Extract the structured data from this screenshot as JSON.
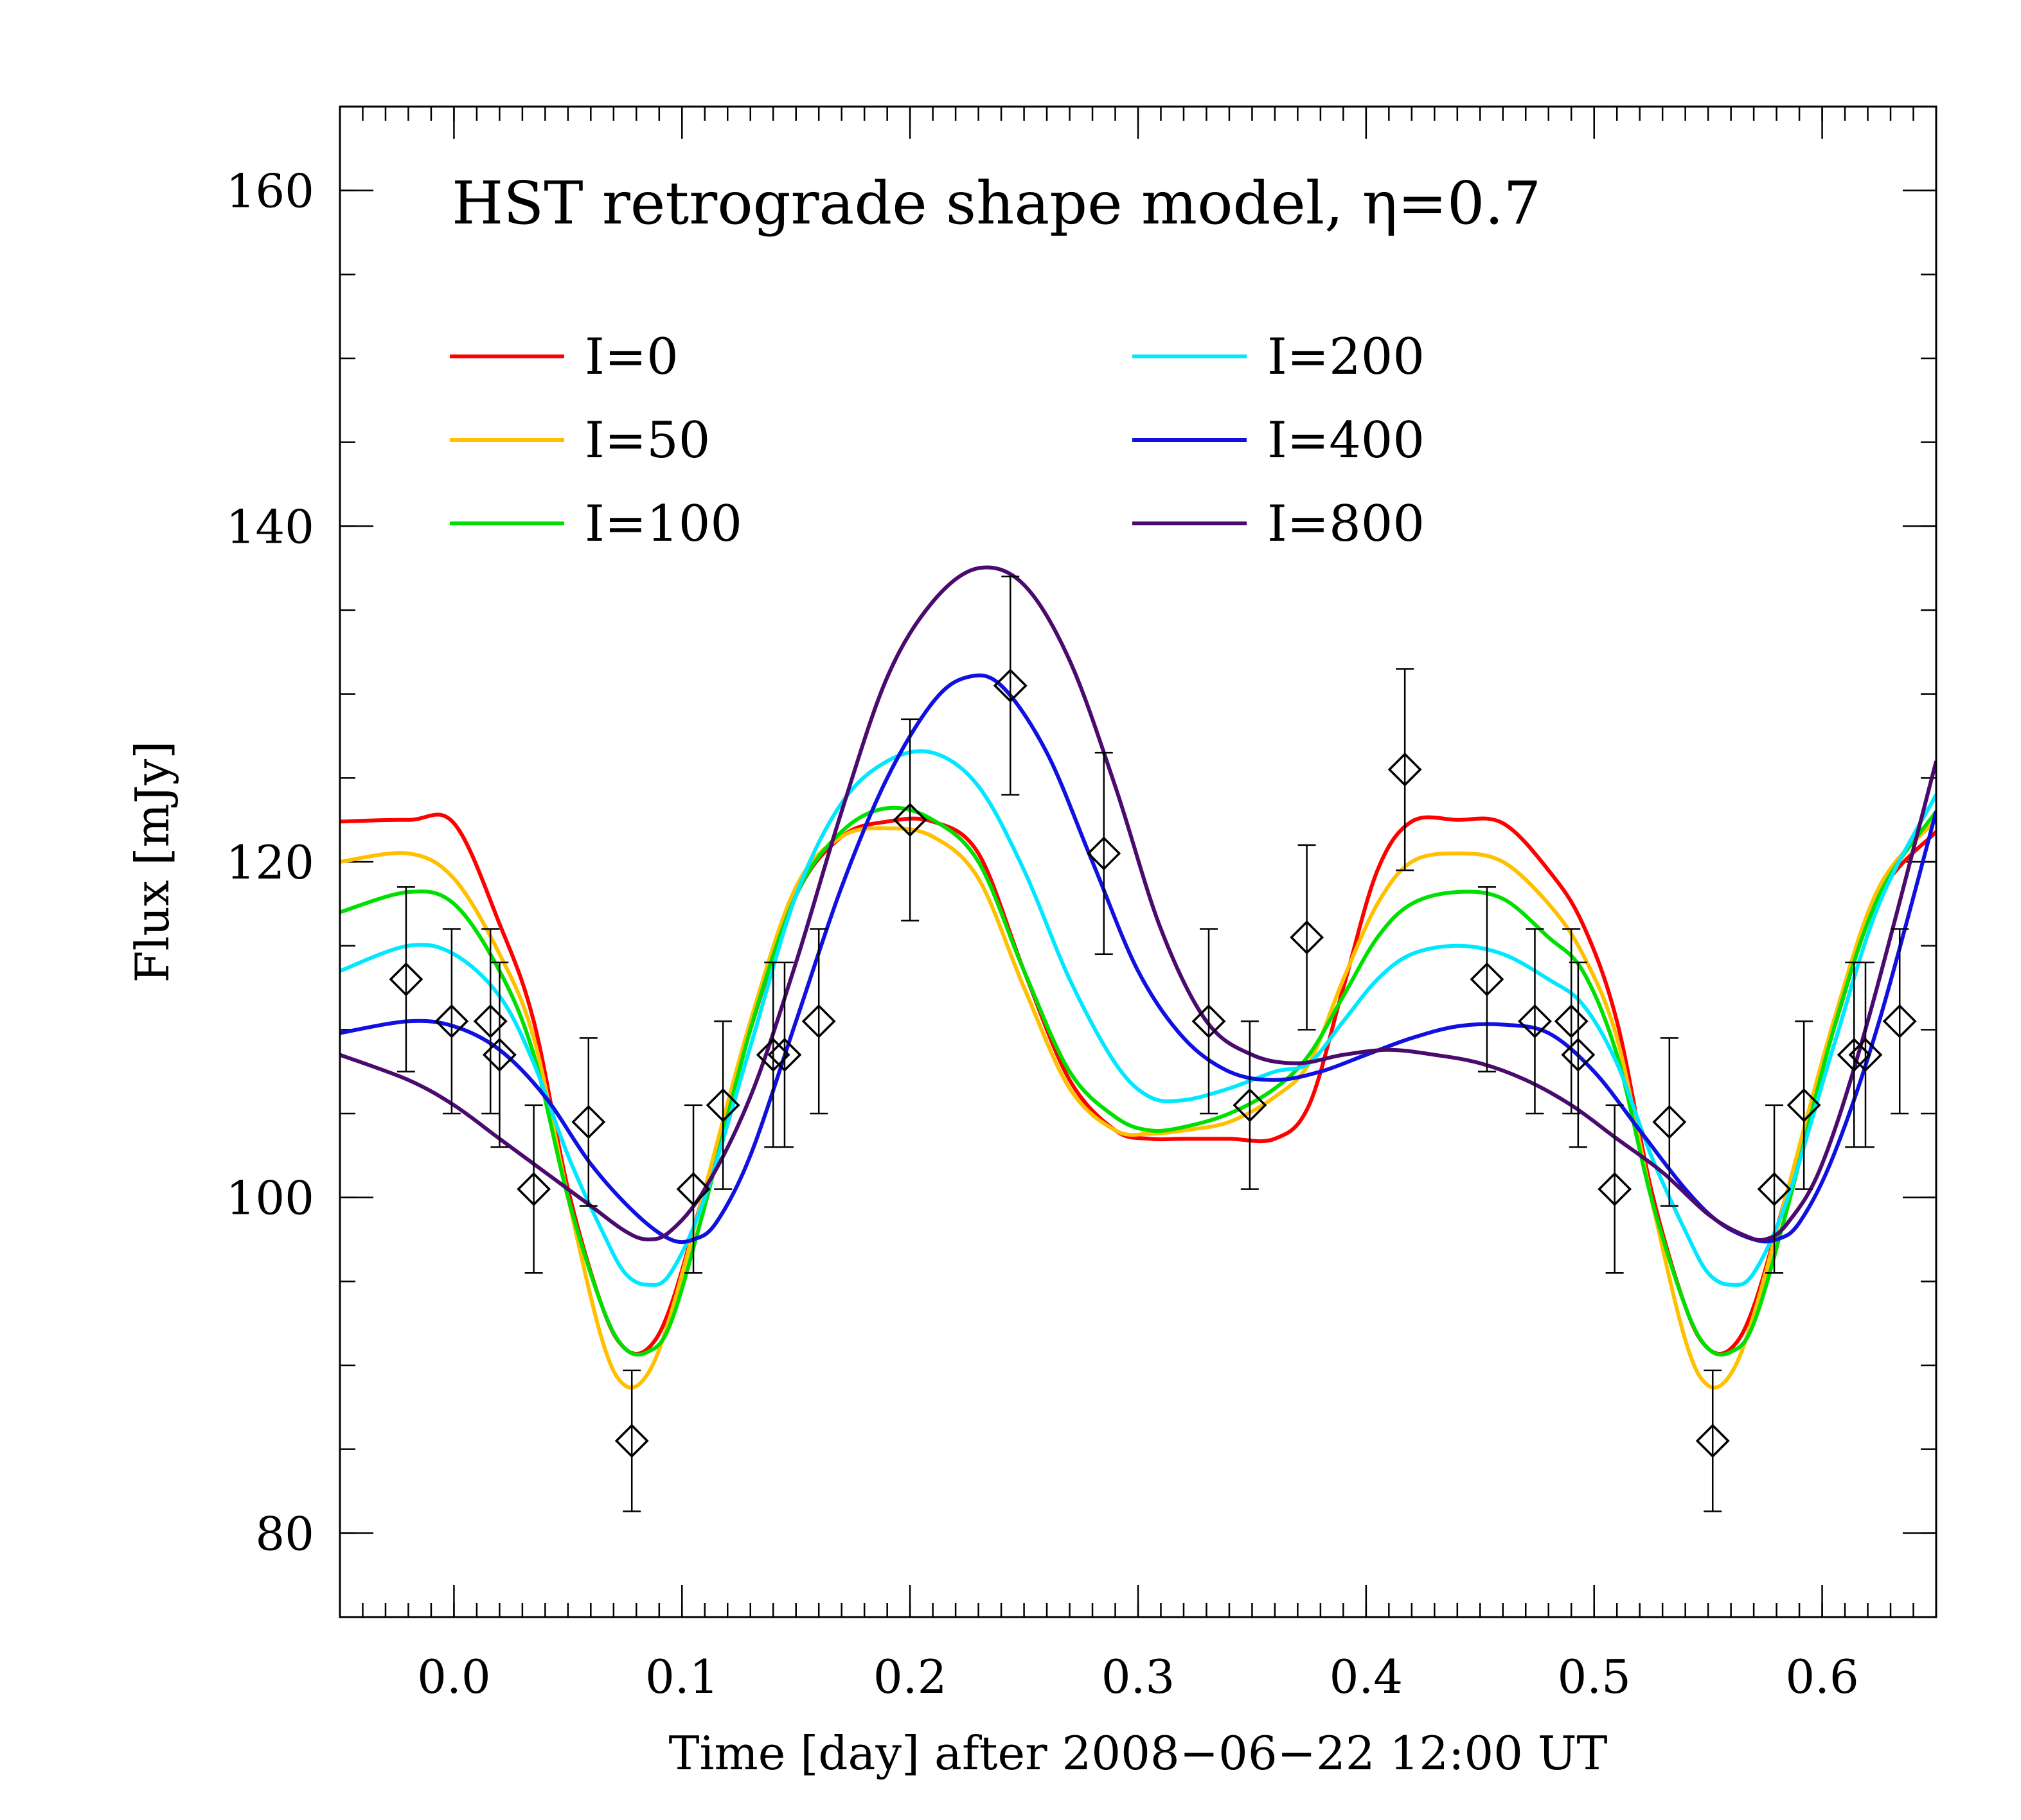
{
  "chart_data": {
    "type": "line",
    "title": "HST retrograde shape model, η=0.7",
    "xlabel": "Time [day] after 2008−06−22 12:00 UT",
    "ylabel": "Flux [mJy]",
    "xlim": [
      -0.05,
      0.65
    ],
    "ylim": [
      75,
      165
    ],
    "x_ticks": [
      0.0,
      0.1,
      0.2,
      0.3,
      0.4,
      0.5,
      0.6
    ],
    "x_tick_labels": [
      "0.0",
      "0.1",
      "0.2",
      "0.3",
      "0.4",
      "0.5",
      "0.6"
    ],
    "y_ticks": [
      80,
      100,
      120,
      140,
      160
    ],
    "y_tick_labels": [
      "80",
      "100",
      "120",
      "140",
      "160"
    ],
    "x_minor_step": 0.01,
    "y_minor_step": 5,
    "grid": false,
    "legend_position": "top",
    "series": [
      {
        "name": "I=0",
        "label": "I=0",
        "color": "#ff0000",
        "x": [
          -0.05,
          -0.02,
          0.0,
          0.02,
          0.035,
          0.05,
          0.065,
          0.075,
          0.085,
          0.095,
          0.11,
          0.13,
          0.15,
          0.17,
          0.19,
          0.21,
          0.23,
          0.25,
          0.27,
          0.29,
          0.305,
          0.32,
          0.34,
          0.36,
          0.375,
          0.39,
          0.405,
          0.42,
          0.44,
          0.46,
          0.48,
          0.495,
          0.51,
          0.525,
          0.54,
          0.55,
          0.56,
          0.57,
          0.585,
          0.605,
          0.625,
          0.65
        ],
        "y": [
          122.4,
          122.5,
          122.3,
          116.3,
          110.5,
          100.5,
          93.5,
          91.0,
          91.0,
          93.5,
          100.5,
          110.0,
          118.0,
          121.5,
          122.4,
          122.4,
          120.5,
          113.5,
          107.0,
          104.0,
          103.5,
          103.5,
          103.5,
          103.5,
          105.5,
          112.5,
          119.5,
          122.4,
          122.5,
          122.3,
          119.5,
          116.3,
          110.5,
          100.5,
          93.5,
          91.0,
          91.0,
          93.5,
          100.5,
          110.0,
          118.0,
          121.8
        ]
      },
      {
        "name": "I=50",
        "label": "I=50",
        "color": "#ffc000",
        "x": [
          -0.05,
          -0.02,
          0.0,
          0.02,
          0.035,
          0.05,
          0.065,
          0.075,
          0.085,
          0.095,
          0.11,
          0.13,
          0.15,
          0.17,
          0.19,
          0.21,
          0.23,
          0.25,
          0.27,
          0.29,
          0.305,
          0.32,
          0.34,
          0.36,
          0.375,
          0.39,
          0.405,
          0.42,
          0.44,
          0.46,
          0.48,
          0.495,
          0.51,
          0.525,
          0.54,
          0.55,
          0.56,
          0.57,
          0.585,
          0.605,
          0.625,
          0.65
        ],
        "y": [
          120.0,
          120.5,
          119.0,
          114.5,
          109.5,
          100.0,
          91.5,
          88.8,
          89.5,
          93.0,
          100.5,
          110.5,
          118.5,
          121.5,
          122.0,
          121.5,
          119.0,
          112.5,
          106.5,
          104.0,
          103.8,
          104.0,
          104.5,
          106.0,
          108.0,
          113.0,
          117.5,
          120.0,
          120.5,
          120.0,
          117.5,
          114.5,
          109.5,
          100.0,
          91.5,
          88.8,
          89.5,
          93.0,
          100.5,
          110.5,
          118.5,
          122.5
        ]
      },
      {
        "name": "I=100",
        "label": "I=100",
        "color": "#00e000",
        "x": [
          -0.05,
          -0.02,
          0.0,
          0.02,
          0.035,
          0.05,
          0.065,
          0.075,
          0.085,
          0.095,
          0.11,
          0.13,
          0.15,
          0.17,
          0.19,
          0.21,
          0.23,
          0.25,
          0.27,
          0.29,
          0.305,
          0.32,
          0.34,
          0.36,
          0.375,
          0.39,
          0.405,
          0.42,
          0.44,
          0.46,
          0.48,
          0.495,
          0.51,
          0.525,
          0.54,
          0.55,
          0.56,
          0.57,
          0.585,
          0.605,
          0.625,
          0.65
        ],
        "y": [
          117.0,
          118.2,
          117.5,
          113.5,
          108.5,
          100.0,
          93.5,
          91.0,
          90.8,
          92.5,
          99.5,
          110.0,
          118.0,
          121.8,
          123.2,
          122.5,
          120.0,
          113.5,
          107.5,
          104.8,
          104.0,
          104.2,
          105.0,
          106.5,
          108.5,
          112.0,
          115.5,
          117.5,
          118.2,
          117.8,
          115.5,
          113.5,
          108.5,
          100.0,
          93.5,
          91.0,
          90.8,
          92.5,
          99.5,
          110.0,
          118.0,
          123.0
        ]
      },
      {
        "name": "I=200",
        "label": "I=200",
        "color": "#00e8ff",
        "x": [
          -0.05,
          -0.02,
          0.0,
          0.02,
          0.035,
          0.05,
          0.065,
          0.075,
          0.085,
          0.095,
          0.11,
          0.13,
          0.15,
          0.17,
          0.19,
          0.21,
          0.23,
          0.25,
          0.27,
          0.29,
          0.305,
          0.32,
          0.34,
          0.36,
          0.375,
          0.39,
          0.405,
          0.42,
          0.44,
          0.46,
          0.48,
          0.495,
          0.51,
          0.525,
          0.54,
          0.55,
          0.56,
          0.57,
          0.585,
          0.605,
          0.625,
          0.65
        ],
        "y": [
          113.5,
          115.0,
          114.5,
          112.0,
          108.0,
          102.5,
          98.0,
          95.5,
          94.8,
          95.5,
          100.0,
          109.0,
          118.0,
          123.5,
          126.0,
          126.5,
          124.5,
          119.5,
          113.0,
          108.0,
          106.0,
          105.8,
          106.5,
          107.5,
          108.0,
          110.5,
          113.0,
          114.5,
          115.0,
          114.5,
          113.0,
          111.5,
          108.0,
          102.5,
          98.0,
          95.5,
          94.8,
          95.5,
          100.0,
          109.0,
          117.5,
          124.0
        ]
      },
      {
        "name": "I=400",
        "label": "I=400",
        "color": "#1010e0",
        "x": [
          -0.05,
          -0.02,
          0.0,
          0.02,
          0.04,
          0.06,
          0.08,
          0.095,
          0.105,
          0.115,
          0.13,
          0.15,
          0.17,
          0.19,
          0.21,
          0.225,
          0.24,
          0.26,
          0.28,
          0.3,
          0.32,
          0.34,
          0.36,
          0.38,
          0.4,
          0.42,
          0.44,
          0.46,
          0.48,
          0.5,
          0.52,
          0.54,
          0.555,
          0.57,
          0.58,
          0.59,
          0.605,
          0.625,
          0.65
        ],
        "y": [
          109.8,
          110.5,
          110.2,
          108.8,
          106.0,
          102.0,
          99.0,
          97.5,
          97.5,
          98.5,
          102.5,
          110.5,
          118.5,
          125.0,
          129.5,
          131.0,
          130.5,
          126.5,
          120.0,
          113.5,
          109.5,
          107.5,
          107.0,
          107.5,
          108.5,
          109.5,
          110.2,
          110.3,
          109.8,
          107.5,
          104.0,
          100.5,
          98.5,
          97.5,
          97.5,
          98.5,
          102.5,
          110.5,
          123.0
        ]
      },
      {
        "name": "I=800",
        "label": "I=800",
        "color": "#4b0a6e",
        "x": [
          -0.05,
          -0.02,
          0.0,
          0.02,
          0.04,
          0.06,
          0.075,
          0.085,
          0.095,
          0.11,
          0.13,
          0.15,
          0.17,
          0.19,
          0.21,
          0.23,
          0.25,
          0.27,
          0.29,
          0.31,
          0.33,
          0.35,
          0.37,
          0.39,
          0.41,
          0.43,
          0.45,
          0.47,
          0.49,
          0.51,
          0.53,
          0.55,
          0.565,
          0.575,
          0.585,
          0.6,
          0.62,
          0.65
        ],
        "y": [
          108.5,
          107.0,
          105.5,
          103.5,
          101.5,
          99.5,
          98.0,
          97.5,
          98.0,
          100.5,
          106.0,
          114.0,
          123.0,
          131.0,
          135.5,
          137.5,
          136.5,
          132.0,
          124.5,
          116.0,
          110.5,
          108.5,
          108.0,
          108.5,
          108.8,
          108.5,
          108.0,
          107.0,
          105.5,
          103.5,
          101.5,
          99.0,
          97.8,
          97.5,
          98.5,
          102.0,
          110.5,
          126.0
        ]
      }
    ],
    "observations": {
      "name": "data",
      "marker": "diamond",
      "points": [
        {
          "x": -0.021,
          "y": 113.0,
          "err": 5.5
        },
        {
          "x": -0.001,
          "y": 110.5,
          "err": 5.5
        },
        {
          "x": 0.016,
          "y": 110.5,
          "err": 5.5
        },
        {
          "x": 0.02,
          "y": 108.5,
          "err": 5.5
        },
        {
          "x": 0.035,
          "y": 100.5,
          "err": 5.0
        },
        {
          "x": 0.059,
          "y": 104.5,
          "err": 5.0
        },
        {
          "x": 0.078,
          "y": 85.5,
          "err": 4.2
        },
        {
          "x": 0.105,
          "y": 100.5,
          "err": 5.0
        },
        {
          "x": 0.118,
          "y": 105.5,
          "err": 5.0
        },
        {
          "x": 0.14,
          "y": 108.5,
          "err": 5.5
        },
        {
          "x": 0.145,
          "y": 108.5,
          "err": 5.5
        },
        {
          "x": 0.16,
          "y": 110.5,
          "err": 5.5
        },
        {
          "x": 0.2,
          "y": 122.5,
          "err": 6.0
        },
        {
          "x": 0.244,
          "y": 130.5,
          "err": 6.5
        },
        {
          "x": 0.285,
          "y": 120.5,
          "err": 6.0
        },
        {
          "x": 0.331,
          "y": 110.5,
          "err": 5.5
        },
        {
          "x": 0.349,
          "y": 105.5,
          "err": 5.0
        },
        {
          "x": 0.374,
          "y": 115.5,
          "err": 5.5
        },
        {
          "x": 0.417,
          "y": 125.5,
          "err": 6.0
        },
        {
          "x": 0.453,
          "y": 113.0,
          "err": 5.5
        },
        {
          "x": 0.474,
          "y": 110.5,
          "err": 5.5
        },
        {
          "x": 0.49,
          "y": 110.5,
          "err": 5.5
        },
        {
          "x": 0.493,
          "y": 108.5,
          "err": 5.5
        },
        {
          "x": 0.509,
          "y": 100.5,
          "err": 5.0
        },
        {
          "x": 0.533,
          "y": 104.5,
          "err": 5.0
        },
        {
          "x": 0.552,
          "y": 85.5,
          "err": 4.2
        },
        {
          "x": 0.579,
          "y": 100.5,
          "err": 5.0
        },
        {
          "x": 0.592,
          "y": 105.5,
          "err": 5.0
        },
        {
          "x": 0.614,
          "y": 108.5,
          "err": 5.5
        },
        {
          "x": 0.619,
          "y": 108.5,
          "err": 5.5
        },
        {
          "x": 0.634,
          "y": 110.5,
          "err": 5.5
        }
      ]
    }
  }
}
